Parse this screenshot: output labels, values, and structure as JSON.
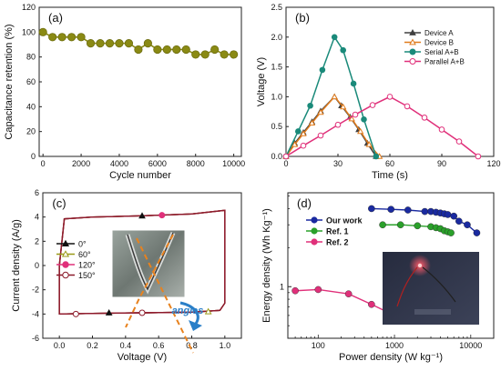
{
  "chart_data": [
    {
      "type": "scatter",
      "panel": "(a)",
      "xlabel": "Cycle number",
      "ylabel": "Capacitance retention (%)",
      "xlim": [
        -200,
        10400
      ],
      "ylim": [
        0,
        120
      ],
      "xticks": [
        0,
        2000,
        4000,
        6000,
        8000,
        10000
      ],
      "yticks": [
        0,
        20,
        40,
        60,
        80,
        100,
        120
      ],
      "series": [
        {
          "color": "#8a8a14",
          "x": [
            0,
            500,
            1000,
            1500,
            2000,
            2500,
            3000,
            3500,
            4000,
            4500,
            5000,
            5500,
            6000,
            6500,
            7000,
            7500,
            8000,
            8500,
            9000,
            9500,
            10000
          ],
          "y": [
            100,
            96,
            96,
            96,
            96,
            91,
            91,
            91,
            91,
            91,
            86,
            91,
            86,
            86,
            86,
            86,
            82,
            82,
            86,
            82,
            82
          ]
        }
      ]
    },
    {
      "type": "line",
      "panel": "(b)",
      "xlabel": "Time (s)",
      "ylabel": "Voltage (V)",
      "xlim": [
        0,
        120
      ],
      "ylim": [
        0,
        2.5
      ],
      "xticks": [
        0,
        30,
        60,
        90,
        120
      ],
      "yticks": [
        0.0,
        0.5,
        1.0,
        1.5,
        2.0,
        2.5
      ],
      "legend_position": "top-right",
      "series": [
        {
          "name": "Device A",
          "color": "#404040",
          "marker": "triangle-filled",
          "x": [
            0,
            5,
            10,
            15,
            20,
            28,
            32,
            37,
            42,
            47,
            52
          ],
          "y": [
            0,
            0.22,
            0.4,
            0.58,
            0.76,
            1.0,
            0.85,
            0.66,
            0.45,
            0.22,
            0
          ]
        },
        {
          "name": "Device B",
          "color": "#e07b1c",
          "marker": "triangle-open",
          "x": [
            0,
            5,
            10,
            15,
            20,
            28,
            33,
            38,
            43,
            48,
            54
          ],
          "y": [
            0,
            0.2,
            0.38,
            0.56,
            0.74,
            1.0,
            0.83,
            0.63,
            0.42,
            0.2,
            0
          ]
        },
        {
          "name": "Serial A+B",
          "color": "#1a8a7a",
          "marker": "circle-filled",
          "x": [
            0,
            7,
            14,
            21,
            28,
            33,
            39,
            45,
            52
          ],
          "y": [
            0,
            0.42,
            0.85,
            1.45,
            2.0,
            1.78,
            1.22,
            0.62,
            0
          ]
        },
        {
          "name": "Parallel A+B",
          "color": "#e0307a",
          "marker": "circle-open",
          "x": [
            0,
            10,
            20,
            30,
            40,
            50,
            60,
            70,
            80,
            90,
            100,
            111
          ],
          "y": [
            0,
            0.18,
            0.35,
            0.53,
            0.7,
            0.86,
            1.0,
            0.84,
            0.65,
            0.45,
            0.25,
            0
          ]
        }
      ]
    },
    {
      "type": "line",
      "panel": "(c)",
      "xlabel": "Voltage (V)",
      "ylabel": "Current density (A/g)",
      "xlim": [
        -0.1,
        1.1
      ],
      "ylim": [
        -6,
        6
      ],
      "xticks": [
        0.0,
        0.2,
        0.4,
        0.6,
        0.8,
        1.0
      ],
      "yticks": [
        -6,
        -4,
        -2,
        0,
        2,
        4,
        6
      ],
      "legend_position": "left",
      "annotation": "angles",
      "series": [
        {
          "name": "0°",
          "color": "#111111",
          "marker": "triangle-filled",
          "x": [
            0.0,
            0.03,
            0.2,
            0.5,
            0.8,
            1.0,
            1.0,
            0.97,
            0.8,
            0.5,
            0.2,
            0.0,
            0.0
          ],
          "y": [
            0,
            3.85,
            4.0,
            4.1,
            4.25,
            4.55,
            -3.1,
            -3.7,
            -3.85,
            -3.9,
            -3.95,
            -4.0,
            0
          ],
          "marker_x": [
            0.5,
            0.3
          ],
          "marker_y": [
            4.1,
            -3.9
          ]
        },
        {
          "name": "60°",
          "color": "#9a9a18",
          "marker": "triangle-open",
          "x": [
            0.0,
            0.03,
            0.2,
            0.5,
            0.8,
            1.0,
            1.0,
            0.97,
            0.8,
            0.5,
            0.2,
            0.0,
            0.0
          ],
          "y": [
            0,
            3.85,
            4.0,
            4.1,
            4.25,
            4.55,
            -3.1,
            -3.7,
            -3.85,
            -3.9,
            -3.95,
            -4.0,
            0
          ],
          "marker_x": [
            0.9
          ],
          "marker_y": [
            -3.8
          ]
        },
        {
          "name": "120°",
          "color": "#e0307a",
          "marker": "circle-filled",
          "x": [
            0.0,
            0.03,
            0.2,
            0.5,
            0.8,
            1.0,
            1.0,
            0.97,
            0.8,
            0.5,
            0.2,
            0.0,
            0.0
          ],
          "y": [
            0,
            3.85,
            4.0,
            4.1,
            4.25,
            4.55,
            -3.1,
            -3.7,
            -3.85,
            -3.9,
            -3.95,
            -4.0,
            0
          ],
          "marker_x": [
            0.62
          ],
          "marker_y": [
            4.15
          ]
        },
        {
          "name": "150°",
          "color": "#8b1a2a",
          "marker": "circle-open",
          "x": [
            0.0,
            0.03,
            0.2,
            0.5,
            0.8,
            1.0,
            1.0,
            0.97,
            0.8,
            0.5,
            0.2,
            0.0,
            0.0
          ],
          "y": [
            0,
            3.85,
            4.0,
            4.1,
            4.25,
            4.55,
            -3.1,
            -3.7,
            -3.85,
            -3.9,
            -3.95,
            -4.0,
            0
          ],
          "marker_x": [
            0.1,
            0.5
          ],
          "marker_y": [
            -4.0,
            -3.9
          ]
        }
      ]
    },
    {
      "type": "line",
      "panel": "(d)",
      "xlabel": "Power density (W kg⁻¹)",
      "ylabel": "Energy density (Wh Kg⁻¹)",
      "xscale": "log",
      "yscale": "log",
      "xlim": [
        40,
        20000
      ],
      "ylim": [
        0.4,
        5.3
      ],
      "xticks": [
        100,
        1000,
        10000
      ],
      "yticks": [
        1
      ],
      "legend_position": "top-left",
      "series": [
        {
          "name": "Our work",
          "color": "#1a2aa0",
          "x": [
            500,
            900,
            1500,
            2500,
            3000,
            3500,
            4000,
            4500,
            5000,
            6000,
            7000,
            9000,
            12000
          ],
          "y": [
            4.0,
            3.95,
            3.9,
            3.8,
            3.8,
            3.75,
            3.7,
            3.65,
            3.6,
            3.5,
            3.2,
            3.0,
            2.6
          ]
        },
        {
          "name": "Ref. 1",
          "color": "#2aa02a",
          "x": [
            700,
            1200,
            2000,
            3000,
            3500,
            4000,
            4500,
            5000,
            5500
          ],
          "y": [
            3.0,
            3.0,
            2.95,
            2.9,
            2.85,
            2.8,
            2.7,
            2.65,
            2.6
          ]
        },
        {
          "name": "Ref. 2",
          "color": "#e0307a",
          "x": [
            50,
            100,
            250,
            500,
            1000
          ],
          "y": [
            0.93,
            0.95,
            0.88,
            0.73,
            0.6
          ]
        }
      ]
    }
  ]
}
